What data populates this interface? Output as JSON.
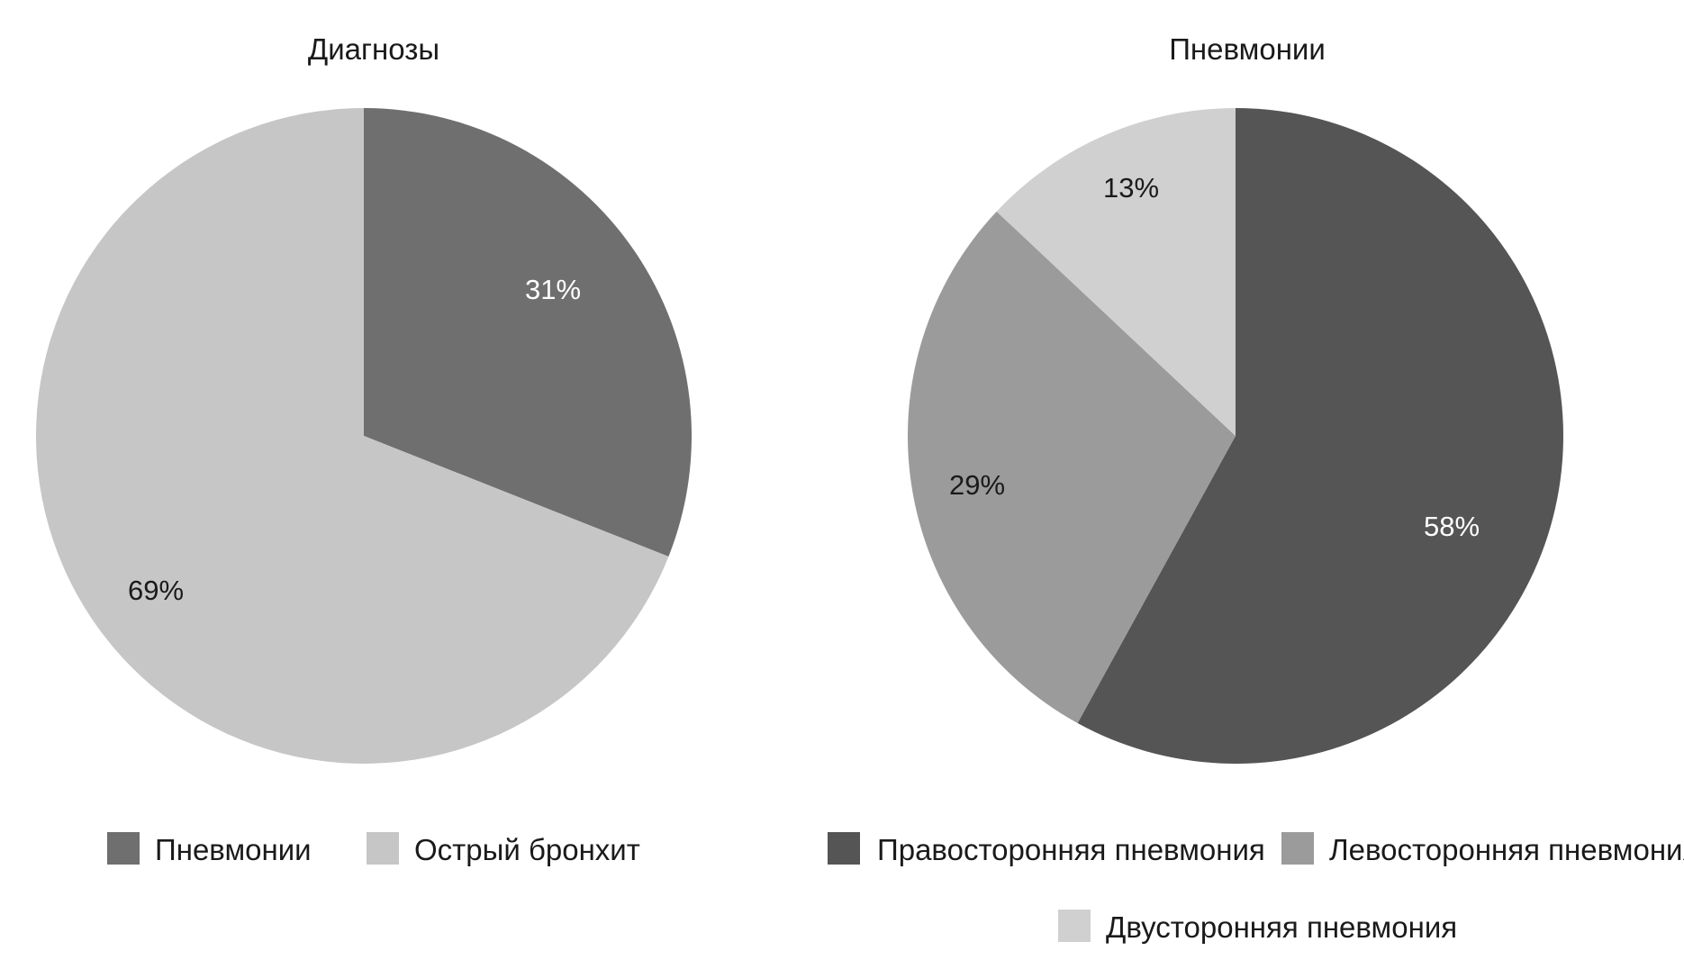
{
  "chart_data": [
    {
      "type": "pie",
      "title": "Диагнозы",
      "categories": [
        "Пневмонии",
        "Острый бронхит"
      ],
      "values": [
        31,
        69
      ],
      "value_labels": [
        "31%",
        "69%"
      ],
      "colors": [
        "#6f6f6f",
        "#c6c6c6"
      ],
      "label_colors": [
        "#ffffff",
        "#1a1a1a"
      ],
      "legend_position": "bottom"
    },
    {
      "type": "pie",
      "title": "Пневмонии",
      "categories": [
        "Правосторонняя пневмония",
        "Левосторонняя пневмония",
        "Двусторонняя пневмония"
      ],
      "values": [
        58,
        29,
        13
      ],
      "value_labels": [
        "58%",
        "29%",
        "13%"
      ],
      "colors": [
        "#555555",
        "#9c9b9b",
        "#d0d0d0"
      ],
      "label_colors": [
        "#ffffff",
        "#1a1a1a",
        "#1a1a1a"
      ],
      "legend_position": "bottom"
    }
  ]
}
